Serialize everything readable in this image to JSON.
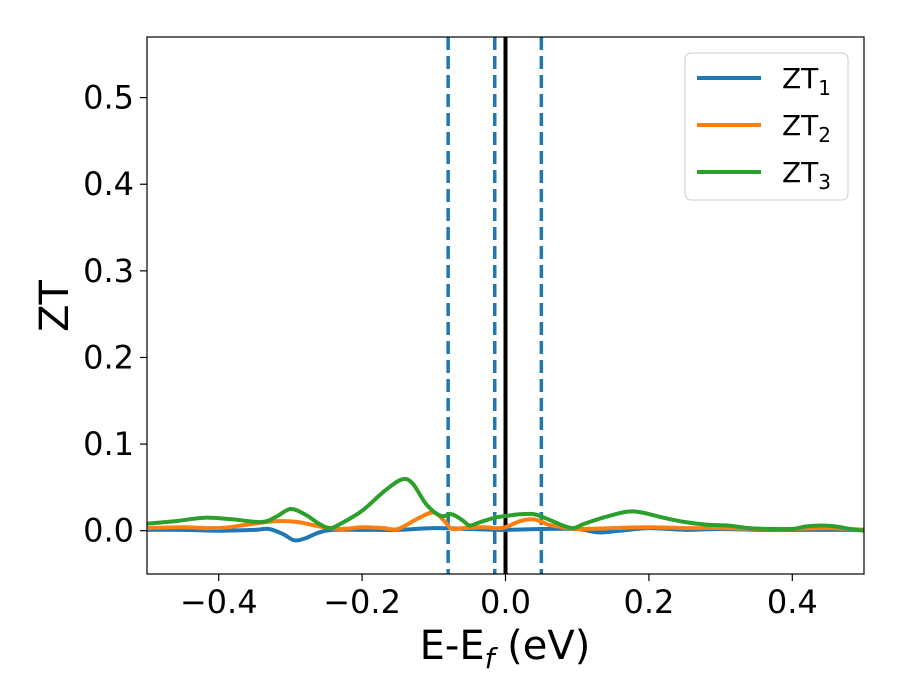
{
  "chart_data": {
    "type": "line",
    "xlabel_main": "E-E",
    "xlabel_sub": "f",
    "xlabel_tail": " (eV)",
    "ylabel": "ZT",
    "xlim": [
      -0.5,
      0.5
    ],
    "ylim": [
      -0.05,
      0.57
    ],
    "xticks": [
      -0.4,
      -0.2,
      0.0,
      0.2,
      0.4
    ],
    "xtick_labels": [
      "−0.4",
      "−0.2",
      "0.0",
      "0.2",
      "0.4"
    ],
    "yticks": [
      0.0,
      0.1,
      0.2,
      0.3,
      0.4,
      0.5
    ],
    "ytick_labels": [
      "0.0",
      "0.1",
      "0.2",
      "0.3",
      "0.4",
      "0.5"
    ],
    "grid": false,
    "legend_position": "top-right",
    "vlines": [
      {
        "x": -0.08,
        "style": "dashed",
        "color": "#1f77b4"
      },
      {
        "x": -0.015,
        "style": "dashed",
        "color": "#1f77b4"
      },
      {
        "x": 0.0,
        "style": "solid",
        "color": "#000000"
      },
      {
        "x": 0.05,
        "style": "dashed",
        "color": "#1f77b4"
      }
    ],
    "series": [
      {
        "name": "ZT",
        "sub": "1",
        "color": "#1f77b4",
        "points": [
          [
            -0.5,
            0.001
          ],
          [
            -0.45,
            0.001
          ],
          [
            -0.4,
            0.0
          ],
          [
            -0.35,
            0.001
          ],
          [
            -0.33,
            0.002
          ],
          [
            -0.31,
            -0.004
          ],
          [
            -0.295,
            -0.011
          ],
          [
            -0.28,
            -0.009
          ],
          [
            -0.26,
            -0.002
          ],
          [
            -0.24,
            0.001
          ],
          [
            -0.2,
            0.001
          ],
          [
            -0.15,
            0.001
          ],
          [
            -0.1,
            0.003
          ],
          [
            -0.05,
            0.002
          ],
          [
            0.0,
            0.001
          ],
          [
            0.05,
            0.002
          ],
          [
            0.1,
            0.002
          ],
          [
            0.13,
            -0.002
          ],
          [
            0.16,
            0.0
          ],
          [
            0.2,
            0.003
          ],
          [
            0.25,
            0.001
          ],
          [
            0.3,
            0.002
          ],
          [
            0.35,
            0.001
          ],
          [
            0.4,
            0.001
          ],
          [
            0.45,
            0.001
          ],
          [
            0.5,
            0.001
          ]
        ]
      },
      {
        "name": "ZT",
        "sub": "2",
        "color": "#ff7f0e",
        "points": [
          [
            -0.5,
            0.003
          ],
          [
            -0.45,
            0.004
          ],
          [
            -0.4,
            0.003
          ],
          [
            -0.36,
            0.007
          ],
          [
            -0.32,
            0.011
          ],
          [
            -0.29,
            0.01
          ],
          [
            -0.26,
            0.005
          ],
          [
            -0.23,
            0.002
          ],
          [
            -0.2,
            0.004
          ],
          [
            -0.17,
            0.003
          ],
          [
            -0.15,
            0.002
          ],
          [
            -0.12,
            0.015
          ],
          [
            -0.1,
            0.021
          ],
          [
            -0.085,
            0.011
          ],
          [
            -0.075,
            0.002
          ],
          [
            -0.06,
            0.003
          ],
          [
            -0.03,
            0.004
          ],
          [
            -0.015,
            0.003
          ],
          [
            0.0,
            0.004
          ],
          [
            0.02,
            0.011
          ],
          [
            0.04,
            0.013
          ],
          [
            0.06,
            0.007
          ],
          [
            0.08,
            0.004
          ],
          [
            0.1,
            0.002
          ],
          [
            0.15,
            0.003
          ],
          [
            0.2,
            0.004
          ],
          [
            0.25,
            0.003
          ],
          [
            0.3,
            0.003
          ],
          [
            0.35,
            0.002
          ],
          [
            0.4,
            0.002
          ],
          [
            0.45,
            0.003
          ],
          [
            0.5,
            0.001
          ]
        ]
      },
      {
        "name": "ZT",
        "sub": "3",
        "color": "#2ca02c",
        "points": [
          [
            -0.5,
            0.008
          ],
          [
            -0.46,
            0.011
          ],
          [
            -0.42,
            0.015
          ],
          [
            -0.38,
            0.013
          ],
          [
            -0.34,
            0.01
          ],
          [
            -0.32,
            0.016
          ],
          [
            -0.3,
            0.025
          ],
          [
            -0.28,
            0.019
          ],
          [
            -0.26,
            0.008
          ],
          [
            -0.245,
            0.003
          ],
          [
            -0.23,
            0.008
          ],
          [
            -0.2,
            0.023
          ],
          [
            -0.17,
            0.045
          ],
          [
            -0.145,
            0.059
          ],
          [
            -0.13,
            0.055
          ],
          [
            -0.11,
            0.03
          ],
          [
            -0.09,
            0.017
          ],
          [
            -0.075,
            0.019
          ],
          [
            -0.06,
            0.012
          ],
          [
            -0.05,
            0.006
          ],
          [
            -0.035,
            0.01
          ],
          [
            -0.015,
            0.015
          ],
          [
            0.0,
            0.017
          ],
          [
            0.02,
            0.019
          ],
          [
            0.04,
            0.019
          ],
          [
            0.06,
            0.013
          ],
          [
            0.08,
            0.006
          ],
          [
            0.095,
            0.003
          ],
          [
            0.11,
            0.008
          ],
          [
            0.14,
            0.016
          ],
          [
            0.17,
            0.022
          ],
          [
            0.19,
            0.021
          ],
          [
            0.22,
            0.015
          ],
          [
            0.25,
            0.01
          ],
          [
            0.28,
            0.007
          ],
          [
            0.31,
            0.006
          ],
          [
            0.34,
            0.003
          ],
          [
            0.37,
            0.002
          ],
          [
            0.4,
            0.002
          ],
          [
            0.42,
            0.005
          ],
          [
            0.44,
            0.006
          ],
          [
            0.46,
            0.005
          ],
          [
            0.48,
            0.002
          ],
          [
            0.5,
            0.0
          ]
        ]
      }
    ]
  }
}
